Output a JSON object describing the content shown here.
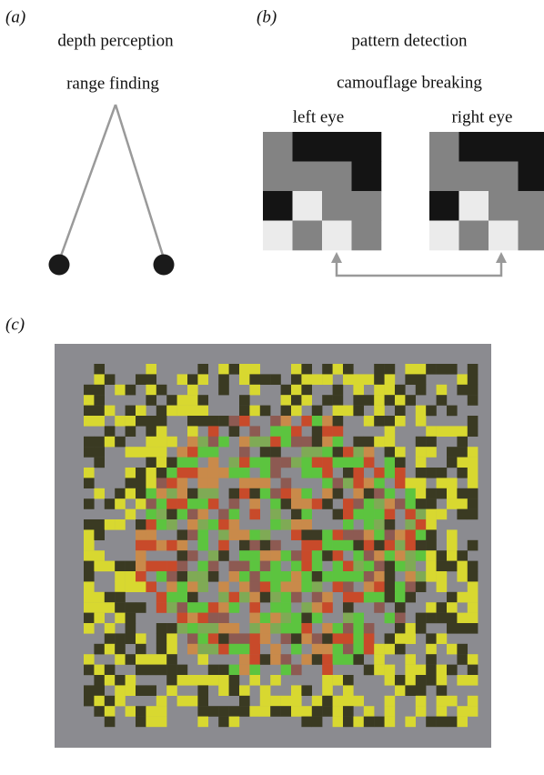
{
  "panels": {
    "a": {
      "label": "(a)",
      "lines": [
        "depth perception",
        "range finding"
      ]
    },
    "b": {
      "label": "(b)",
      "lines": [
        "pattern detection",
        "camouflage breaking"
      ],
      "eyes": [
        "left eye",
        "right eye"
      ]
    },
    "c": {
      "label": "(c)"
    }
  }
}
